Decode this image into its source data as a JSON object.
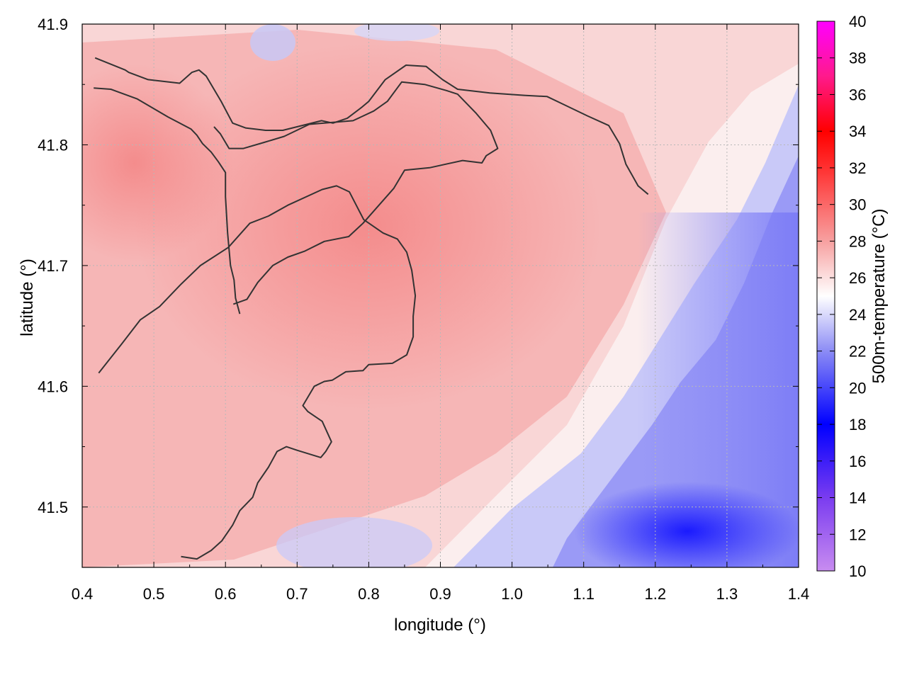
{
  "chart_data": {
    "type": "heatmap",
    "title": "",
    "xlabel": "longitude (°)",
    "ylabel": "latitude (°)",
    "colorbar_label": "500m-temperature (°C)",
    "xlim": [
      0.4,
      1.4
    ],
    "ylim": [
      41.45,
      41.9
    ],
    "x_ticks": [
      "0.4",
      "0.5",
      "0.6",
      "0.7",
      "0.8",
      "0.9",
      "1.0",
      "1.1",
      "1.2",
      "1.3",
      "1.4"
    ],
    "y_ticks": [
      "41.5",
      "41.6",
      "41.7",
      "41.8",
      "41.9"
    ],
    "color_range": [
      10,
      40
    ],
    "colorbar_ticks": [
      "10",
      "12",
      "14",
      "16",
      "18",
      "20",
      "22",
      "24",
      "26",
      "28",
      "30",
      "32",
      "34",
      "36",
      "38",
      "40"
    ],
    "colormap": [
      {
        "value": 10,
        "color": "#c88cf0"
      },
      {
        "value": 14,
        "color": "#7a3cf0"
      },
      {
        "value": 18,
        "color": "#0000ff"
      },
      {
        "value": 22,
        "color": "#8c8cf5"
      },
      {
        "value": 25,
        "color": "#ffffff"
      },
      {
        "value": 28,
        "color": "#f7a0a0"
      },
      {
        "value": 32,
        "color": "#ff3030"
      },
      {
        "value": 34,
        "color": "#ff0000"
      },
      {
        "value": 37,
        "color": "#ff1a8c"
      },
      {
        "value": 40,
        "color": "#ff00ff"
      }
    ],
    "grid": true,
    "contours": [
      {
        "points": [
          [
            0.418,
            41.872
          ],
          [
            0.46,
            41.862
          ],
          [
            0.465,
            41.86
          ],
          [
            0.492,
            41.854
          ],
          [
            0.536,
            41.851
          ],
          [
            0.553,
            41.86
          ],
          [
            0.563,
            41.862
          ],
          [
            0.573,
            41.857
          ],
          [
            0.594,
            41.836
          ],
          [
            0.61,
            41.818
          ],
          [
            0.628,
            41.814
          ],
          [
            0.656,
            41.812
          ],
          [
            0.68,
            41.812
          ],
          [
            0.734,
            41.82
          ],
          [
            0.75,
            41.818
          ],
          [
            0.77,
            41.822
          ],
          [
            0.79,
            41.831
          ],
          [
            0.8,
            41.836
          ],
          [
            0.823,
            41.854
          ],
          [
            0.852,
            41.866
          ],
          [
            0.88,
            41.865
          ],
          [
            0.903,
            41.854
          ],
          [
            0.924,
            41.846
          ],
          [
            0.969,
            41.843
          ],
          [
            1.017,
            41.841
          ],
          [
            1.049,
            41.84
          ],
          [
            1.07,
            41.834
          ],
          [
            1.105,
            41.824
          ],
          [
            1.135,
            41.816
          ],
          [
            1.15,
            41.801
          ],
          [
            1.159,
            41.784
          ],
          [
            1.176,
            41.766
          ],
          [
            1.19,
            41.759
          ]
        ]
      },
      {
        "points": [
          [
            0.416,
            41.847
          ],
          [
            0.44,
            41.846
          ],
          [
            0.477,
            41.838
          ],
          [
            0.52,
            41.823
          ],
          [
            0.552,
            41.813
          ],
          [
            0.56,
            41.808
          ],
          [
            0.568,
            41.801
          ],
          [
            0.58,
            41.794
          ],
          [
            0.59,
            41.786
          ],
          [
            0.6,
            41.777
          ],
          [
            0.6,
            41.757
          ],
          [
            0.603,
            41.727
          ],
          [
            0.607,
            41.7
          ],
          [
            0.612,
            41.688
          ],
          [
            0.614,
            41.673
          ],
          [
            0.62,
            41.66
          ]
        ]
      },
      {
        "points": [
          [
            0.611,
            41.668
          ],
          [
            0.63,
            41.672
          ],
          [
            0.645,
            41.686
          ],
          [
            0.666,
            41.7
          ],
          [
            0.687,
            41.707
          ],
          [
            0.711,
            41.712
          ],
          [
            0.738,
            41.72
          ],
          [
            0.772,
            41.724
          ],
          [
            0.792,
            41.735
          ],
          [
            0.835,
            41.764
          ],
          [
            0.85,
            41.779
          ],
          [
            0.885,
            41.781
          ],
          [
            0.931,
            41.787
          ],
          [
            0.958,
            41.785
          ],
          [
            0.964,
            41.791
          ],
          [
            0.98,
            41.797
          ],
          [
            0.97,
            41.812
          ],
          [
            0.95,
            41.826
          ],
          [
            0.924,
            41.842
          ],
          [
            0.908,
            41.845
          ],
          [
            0.878,
            41.85
          ],
          [
            0.846,
            41.852
          ],
          [
            0.826,
            41.836
          ],
          [
            0.807,
            41.828
          ],
          [
            0.778,
            41.82
          ],
          [
            0.717,
            41.817
          ],
          [
            0.682,
            41.807
          ],
          [
            0.654,
            41.802
          ],
          [
            0.625,
            41.797
          ],
          [
            0.605,
            41.797
          ],
          [
            0.593,
            41.809
          ],
          [
            0.584,
            41.815
          ]
        ]
      },
      {
        "points": [
          [
            0.423,
            41.611
          ],
          [
            0.455,
            41.635
          ],
          [
            0.481,
            41.655
          ],
          [
            0.508,
            41.666
          ],
          [
            0.537,
            41.684
          ],
          [
            0.565,
            41.7
          ],
          [
            0.604,
            41.715
          ],
          [
            0.634,
            41.735
          ],
          [
            0.66,
            41.741
          ],
          [
            0.687,
            41.75
          ],
          [
            0.735,
            41.763
          ],
          [
            0.755,
            41.766
          ],
          [
            0.773,
            41.761
          ],
          [
            0.793,
            41.738
          ],
          [
            0.82,
            41.727
          ],
          [
            0.84,
            41.722
          ],
          [
            0.853,
            41.711
          ],
          [
            0.86,
            41.696
          ],
          [
            0.865,
            41.675
          ],
          [
            0.862,
            41.658
          ],
          [
            0.862,
            41.641
          ],
          [
            0.853,
            41.626
          ],
          [
            0.833,
            41.619
          ],
          [
            0.8,
            41.618
          ],
          [
            0.792,
            41.613
          ],
          [
            0.768,
            41.612
          ],
          [
            0.749,
            41.605
          ],
          [
            0.738,
            41.604
          ],
          [
            0.724,
            41.6
          ],
          [
            0.717,
            41.593
          ],
          [
            0.708,
            41.584
          ],
          [
            0.715,
            41.579
          ],
          [
            0.735,
            41.571
          ],
          [
            0.748,
            41.554
          ],
          [
            0.74,
            41.546
          ],
          [
            0.733,
            41.541
          ],
          [
            0.7,
            41.547
          ],
          [
            0.685,
            41.55
          ],
          [
            0.672,
            41.546
          ],
          [
            0.66,
            41.533
          ],
          [
            0.645,
            41.52
          ],
          [
            0.638,
            41.508
          ],
          [
            0.62,
            41.497
          ],
          [
            0.61,
            41.485
          ],
          [
            0.595,
            41.472
          ],
          [
            0.58,
            41.464
          ],
          [
            0.56,
            41.457
          ],
          [
            0.538,
            41.459
          ]
        ]
      }
    ]
  }
}
